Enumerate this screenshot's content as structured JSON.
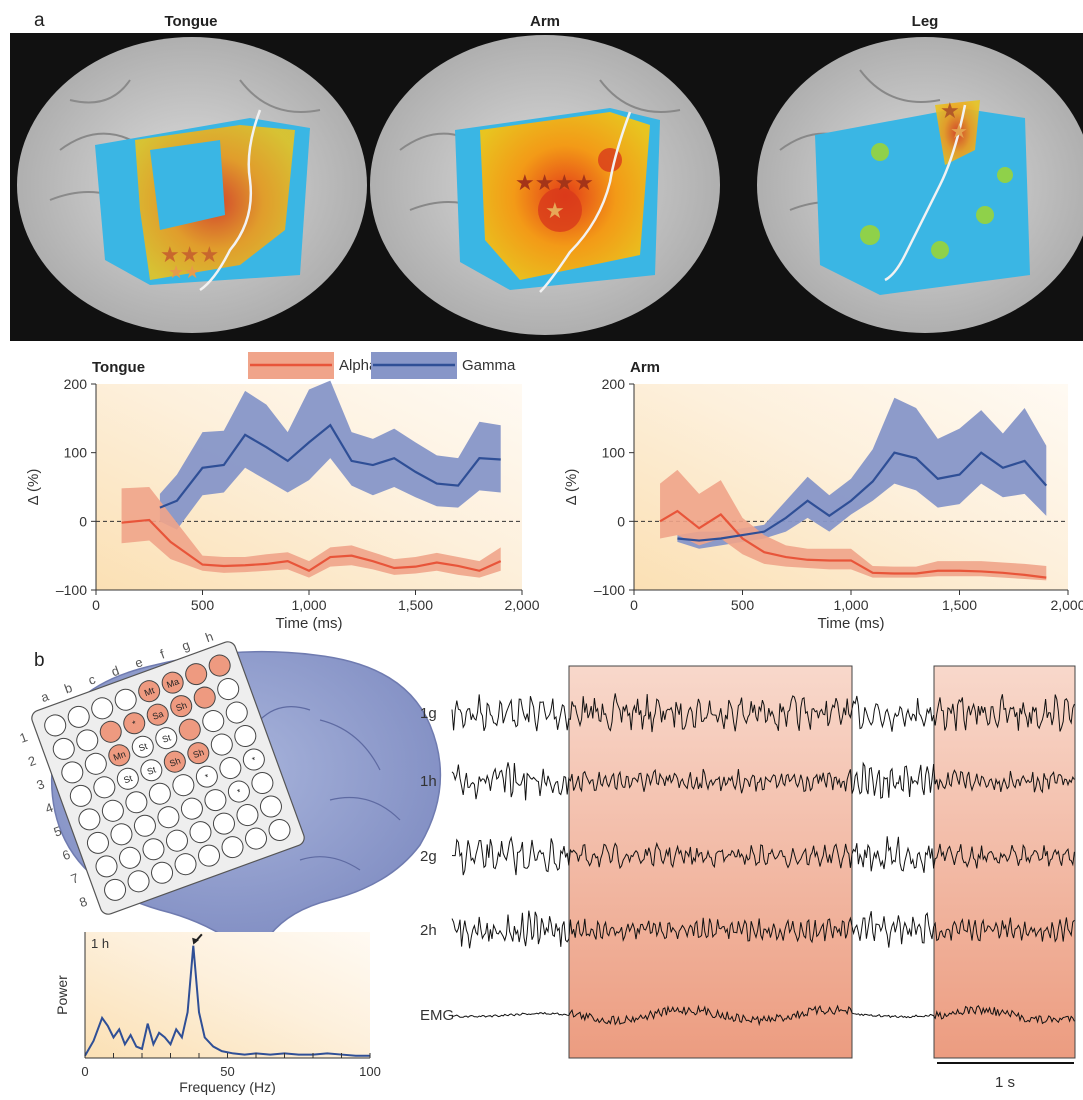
{
  "panel_a": {
    "label": "a",
    "brain_titles": [
      "Tongue",
      "Arm",
      "Leg"
    ]
  },
  "panel_b": {
    "label": "b",
    "grid_columns": [
      "a",
      "b",
      "c",
      "d",
      "e",
      "f",
      "g",
      "h"
    ],
    "grid_rows": [
      "1",
      "2",
      "3",
      "4",
      "5",
      "6",
      "7",
      "8"
    ],
    "electrode_tags": [
      "Mt",
      "Ma",
      "*",
      "Sa",
      "Sh",
      "Mn",
      "St",
      "St",
      "St",
      "St",
      "Sh",
      "Sh",
      "*",
      "*",
      "*"
    ],
    "trace_labels": [
      "1g",
      "1h",
      "2g",
      "2h",
      "EMG"
    ],
    "scale_bar_label": "1 s"
  },
  "colors": {
    "alpha": "#e8553a",
    "alpha_band": "#f0a48a",
    "gamma": "#2f4f96",
    "gamma_band": "#8796c8",
    "highlight": "#f1c0a8",
    "brain_blue": "#8e9ccd"
  },
  "chart_data": [
    {
      "type": "line",
      "title": "Tongue",
      "xlabel": "Time (ms)",
      "ylabel": "Δ (%)",
      "xlim": [
        0,
        2000
      ],
      "ylim": [
        -100,
        200
      ],
      "xticks": [
        0,
        500,
        1000,
        1500,
        2000
      ],
      "xtick_labels": [
        "0",
        "500",
        "1,000",
        "1,500",
        "2,000"
      ],
      "yticks": [
        -100,
        0,
        100,
        200
      ],
      "ytick_labels": [
        "–100",
        "0",
        "100",
        "200"
      ],
      "legend": [
        "Alpha",
        "Gamma"
      ],
      "series": [
        {
          "name": "Alpha",
          "x": [
            120,
            250,
            350,
            500,
            600,
            700,
            800,
            900,
            1000,
            1100,
            1200,
            1300,
            1400,
            1500,
            1600,
            1700,
            1800,
            1900
          ],
          "y": [
            -2,
            2,
            -30,
            -63,
            -65,
            -64,
            -62,
            -58,
            -72,
            -52,
            -50,
            -58,
            -68,
            -66,
            -60,
            -65,
            -72,
            -58
          ],
          "lower": [
            -32,
            -28,
            -55,
            -72,
            -75,
            -74,
            -72,
            -70,
            -82,
            -66,
            -64,
            -70,
            -78,
            -76,
            -72,
            -78,
            -82,
            -72
          ],
          "upper": [
            48,
            50,
            10,
            -50,
            -52,
            -52,
            -48,
            -45,
            -58,
            -38,
            -35,
            -45,
            -55,
            -52,
            -46,
            -52,
            -58,
            -38
          ]
        },
        {
          "name": "Gamma",
          "x": [
            300,
            380,
            500,
            600,
            700,
            800,
            900,
            1000,
            1100,
            1200,
            1300,
            1400,
            1500,
            1600,
            1700,
            1800,
            1900
          ],
          "y": [
            20,
            30,
            78,
            82,
            126,
            108,
            88,
            115,
            140,
            88,
            82,
            92,
            72,
            55,
            52,
            92,
            90
          ],
          "lower": [
            0,
            -12,
            38,
            42,
            78,
            60,
            42,
            60,
            92,
            52,
            38,
            50,
            35,
            22,
            20,
            45,
            42
          ],
          "upper": [
            40,
            68,
            130,
            132,
            190,
            170,
            130,
            192,
            205,
            130,
            120,
            135,
            115,
            96,
            92,
            145,
            140
          ]
        }
      ]
    },
    {
      "type": "line",
      "title": "Arm",
      "xlabel": "Time (ms)",
      "ylabel": "Δ (%)",
      "xlim": [
        0,
        2000
      ],
      "ylim": [
        -100,
        200
      ],
      "xticks": [
        0,
        500,
        1000,
        1500,
        2000
      ],
      "xtick_labels": [
        "0",
        "500",
        "1,000",
        "1,500",
        "2,000"
      ],
      "yticks": [
        -100,
        0,
        100,
        200
      ],
      "ytick_labels": [
        "–100",
        "0",
        "100",
        "200"
      ],
      "series": [
        {
          "name": "Alpha",
          "x": [
            120,
            200,
            300,
            400,
            500,
            600,
            700,
            800,
            900,
            1000,
            1100,
            1200,
            1300,
            1400,
            1500,
            1600,
            1700,
            1800,
            1900
          ],
          "y": [
            0,
            15,
            -10,
            10,
            -25,
            -45,
            -52,
            -56,
            -57,
            -57,
            -75,
            -76,
            -76,
            -72,
            -72,
            -73,
            -75,
            -78,
            -82
          ],
          "lower": [
            -25,
            -20,
            -35,
            -25,
            -48,
            -62,
            -66,
            -68,
            -70,
            -70,
            -82,
            -82,
            -82,
            -80,
            -80,
            -80,
            -82,
            -84,
            -86
          ],
          "upper": [
            55,
            75,
            40,
            60,
            5,
            -20,
            -35,
            -40,
            -40,
            -40,
            -65,
            -66,
            -66,
            -58,
            -58,
            -58,
            -60,
            -62,
            -65
          ]
        },
        {
          "name": "Gamma",
          "x": [
            200,
            300,
            400,
            500,
            600,
            700,
            800,
            900,
            1000,
            1100,
            1200,
            1300,
            1400,
            1500,
            1600,
            1700,
            1800,
            1900
          ],
          "y": [
            -25,
            -28,
            -25,
            -20,
            -15,
            5,
            30,
            8,
            30,
            58,
            100,
            92,
            62,
            68,
            100,
            78,
            88,
            52
          ],
          "lower": [
            -30,
            -40,
            -35,
            -30,
            -25,
            -15,
            5,
            -15,
            10,
            30,
            55,
            45,
            20,
            25,
            55,
            35,
            40,
            8
          ],
          "upper": [
            -20,
            -15,
            -15,
            -10,
            -5,
            30,
            65,
            38,
            62,
            105,
            180,
            165,
            120,
            135,
            162,
            128,
            165,
            110
          ]
        }
      ]
    },
    {
      "type": "line",
      "title": "",
      "xlabel": "Frequency (Hz)",
      "ylabel": "Power",
      "inset_label": "1 h",
      "xlim": [
        0,
        100
      ],
      "xticks": [
        0,
        50,
        100
      ],
      "xtick_labels": [
        "0",
        "50",
        "100"
      ],
      "series": [
        {
          "x": [
            0,
            3,
            6,
            8,
            10,
            12,
            14,
            16,
            18,
            20,
            22,
            24,
            26,
            28,
            30,
            32,
            34,
            36,
            38,
            40,
            42,
            45,
            48,
            52,
            56,
            60,
            65,
            70,
            75,
            80,
            85,
            90,
            95,
            100
          ],
          "y": [
            2,
            15,
            35,
            28,
            18,
            25,
            12,
            20,
            10,
            8,
            30,
            12,
            22,
            18,
            12,
            25,
            18,
            40,
            98,
            40,
            18,
            10,
            6,
            4,
            3,
            4,
            3,
            4,
            3,
            3,
            4,
            3,
            2,
            2
          ]
        }
      ]
    }
  ]
}
